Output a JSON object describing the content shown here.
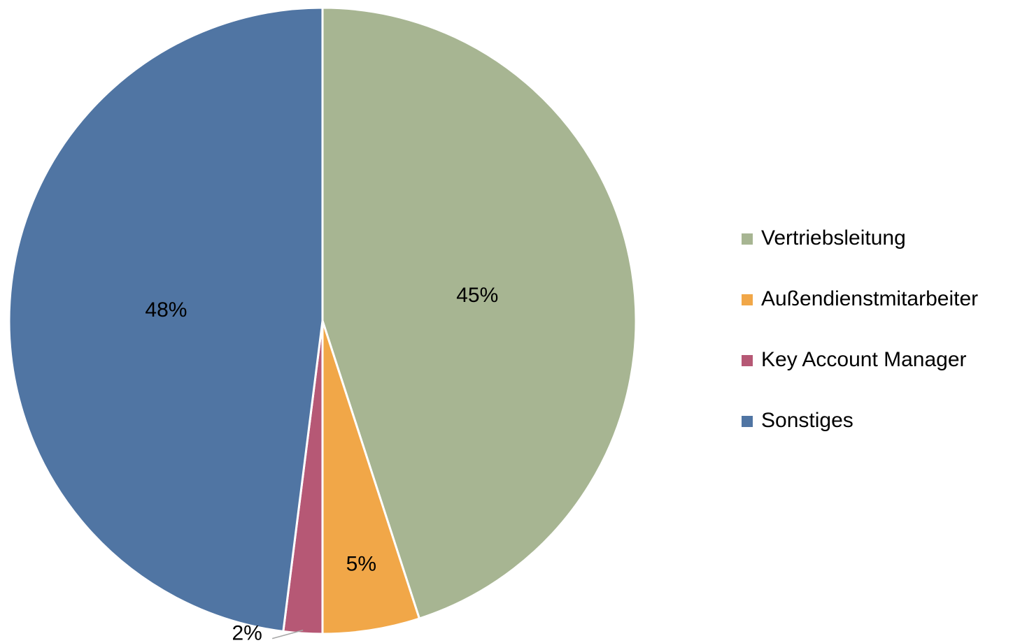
{
  "chart_data": {
    "type": "pie",
    "categories": [
      "Vertriebsleitung",
      "Außendienstmitarbeiter",
      "Key Account Manager",
      "Sonstiges"
    ],
    "values": [
      45,
      5,
      2,
      48
    ],
    "value_labels": [
      "45%",
      "5%",
      "2%",
      "48%"
    ],
    "colors": [
      "#a7b592",
      "#f1a748",
      "#b65875",
      "#5075a3"
    ],
    "legend": "right"
  }
}
